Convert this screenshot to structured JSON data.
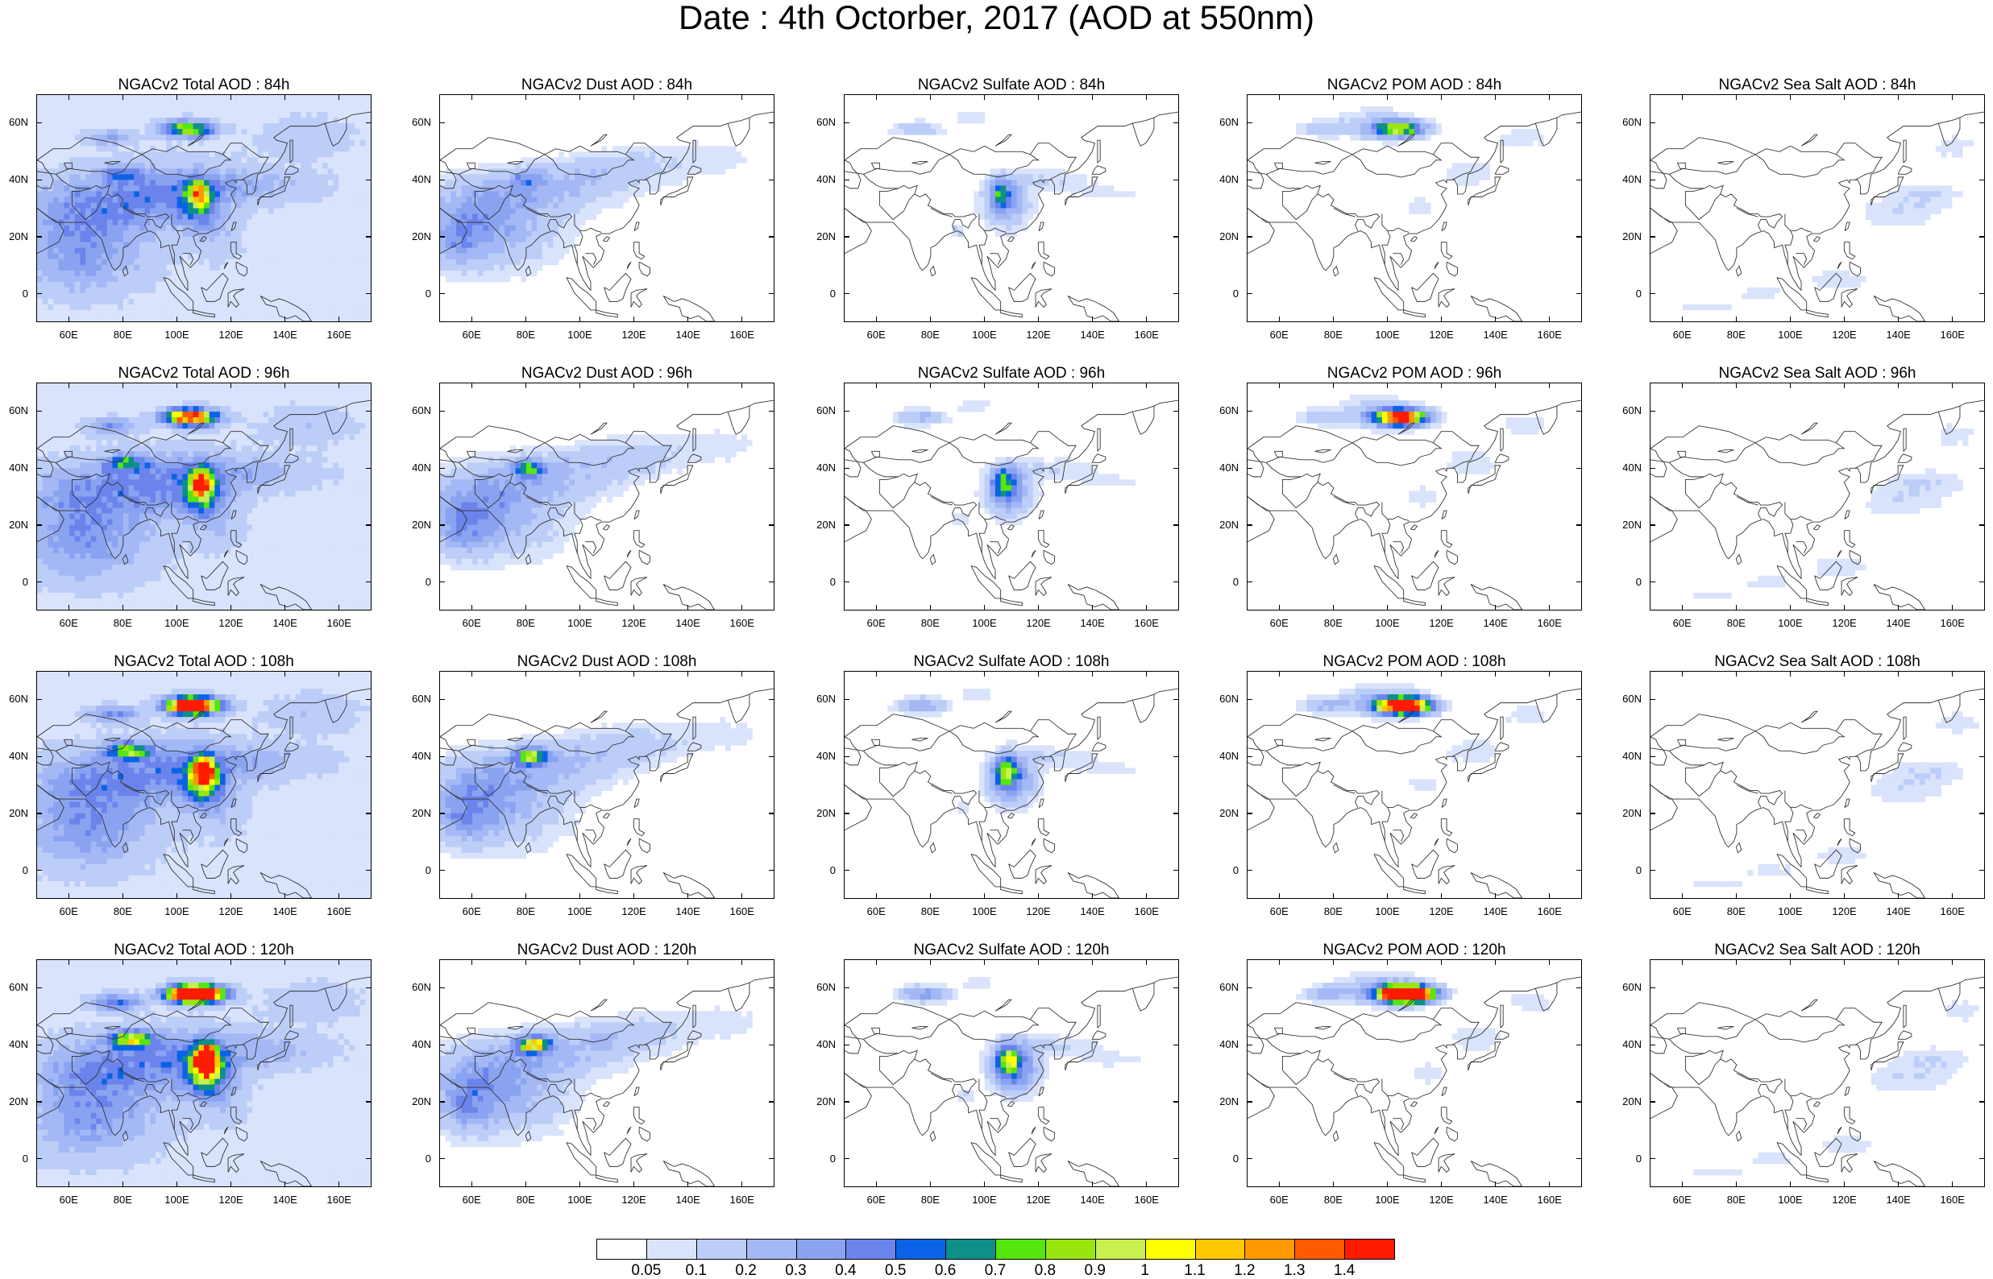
{
  "title": "Date : 4th Octorber, 2017 (AOD at 550nm)",
  "lat_ticks": [
    "60N",
    "40N",
    "20N",
    "0"
  ],
  "lon_ticks": [
    "60E",
    "80E",
    "100E",
    "120E",
    "140E",
    "160E"
  ],
  "legend": {
    "labels": [
      "0.05",
      "0.1",
      "0.2",
      "0.3",
      "0.4",
      "0.5",
      "0.6",
      "0.7",
      "0.8",
      "0.9",
      "1",
      "1.1",
      "1.2",
      "1.3",
      "1.4"
    ],
    "colors": [
      "#ffffff",
      "#d9e3fb",
      "#bccdf8",
      "#a3b8f5",
      "#8aa3f1",
      "#6b84ec",
      "#0a63e6",
      "#0e8f8a",
      "#56e60f",
      "#99e60f",
      "#c8f050",
      "#ffff00",
      "#ffc800",
      "#ff9900",
      "#ff5a00",
      "#ff1a00"
    ]
  },
  "panels": [
    [
      {
        "title": "NGACv2 Total AOD : 84h",
        "species": "total",
        "hour": 84
      },
      {
        "title": "NGACv2 Dust AOD : 84h",
        "species": "dust",
        "hour": 84
      },
      {
        "title": "NGACv2 Sulfate AOD : 84h",
        "species": "sulfate",
        "hour": 84
      },
      {
        "title": "NGACv2 POM AOD : 84h",
        "species": "pom",
        "hour": 84
      },
      {
        "title": "NGACv2 Sea Salt AOD : 84h",
        "species": "seasalt",
        "hour": 84
      }
    ],
    [
      {
        "title": "NGACv2 Total AOD : 96h",
        "species": "total",
        "hour": 96
      },
      {
        "title": "NGACv2 Dust AOD : 96h",
        "species": "dust",
        "hour": 96
      },
      {
        "title": "NGACv2 Sulfate AOD : 96h",
        "species": "sulfate",
        "hour": 96
      },
      {
        "title": "NGACv2 POM AOD : 96h",
        "species": "pom",
        "hour": 96
      },
      {
        "title": "NGACv2 Sea Salt AOD : 96h",
        "species": "seasalt",
        "hour": 96
      }
    ],
    [
      {
        "title": "NGACv2 Total AOD : 108h",
        "species": "total",
        "hour": 108
      },
      {
        "title": "NGACv2 Dust AOD : 108h",
        "species": "dust",
        "hour": 108
      },
      {
        "title": "NGACv2 Sulfate AOD : 108h",
        "species": "sulfate",
        "hour": 108
      },
      {
        "title": "NGACv2 POM AOD : 108h",
        "species": "pom",
        "hour": 108
      },
      {
        "title": "NGACv2 Sea Salt AOD : 108h",
        "species": "seasalt",
        "hour": 108
      }
    ],
    [
      {
        "title": "NGACv2 Total AOD : 120h",
        "species": "total",
        "hour": 120
      },
      {
        "title": "NGACv2 Dust AOD : 120h",
        "species": "dust",
        "hour": 120
      },
      {
        "title": "NGACv2 Sulfate AOD : 120h",
        "species": "sulfate",
        "hour": 120
      },
      {
        "title": "NGACv2 POM AOD : 120h",
        "species": "pom",
        "hour": 120
      },
      {
        "title": "NGACv2 Sea Salt  AOD : 120h",
        "species": "seasalt",
        "hour": 120
      }
    ]
  ]
}
